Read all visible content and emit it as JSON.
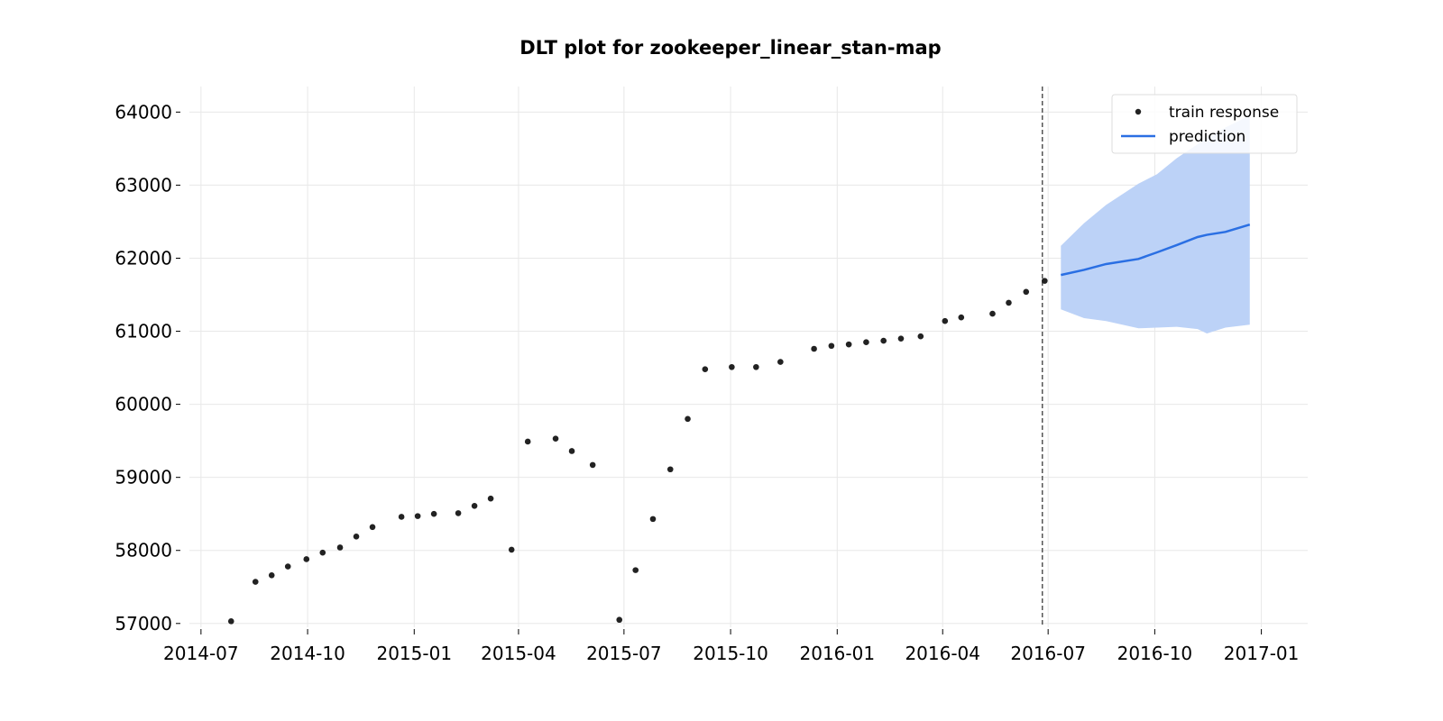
{
  "chart_data": {
    "type": "line",
    "title": "DLT plot for zookeeper_linear_stan-map",
    "xlabel": "",
    "ylabel": "",
    "xlim": [
      "2014-06-21",
      "2017-02-10"
    ],
    "ylim": [
      56800,
      64350
    ],
    "x_ticks": [
      "2014-07",
      "2014-10",
      "2015-01",
      "2015-04",
      "2015-07",
      "2015-10",
      "2016-01",
      "2016-04",
      "2016-07",
      "2016-10",
      "2017-01"
    ],
    "y_ticks": [
      57000,
      58000,
      59000,
      60000,
      61000,
      62000,
      63000,
      64000
    ],
    "grid": true,
    "legend_position": "top-right",
    "legend": [
      "train response",
      "prediction"
    ],
    "train_end": "2016-06-26",
    "series": [
      {
        "name": "train response",
        "kind": "scatter",
        "color": "#222222",
        "points": [
          [
            "2014-07-27",
            57030
          ],
          [
            "2014-08-17",
            57570
          ],
          [
            "2014-08-31",
            57660
          ],
          [
            "2014-09-14",
            57780
          ],
          [
            "2014-09-30",
            57880
          ],
          [
            "2014-10-14",
            57970
          ],
          [
            "2014-10-29",
            58040
          ],
          [
            "2014-11-12",
            58190
          ],
          [
            "2014-11-26",
            58320
          ],
          [
            "2014-12-21",
            58460
          ],
          [
            "2015-01-04",
            58470
          ],
          [
            "2015-01-18",
            58500
          ],
          [
            "2015-02-08",
            58510
          ],
          [
            "2015-02-22",
            58610
          ],
          [
            "2015-03-08",
            58710
          ],
          [
            "2015-03-26",
            58010
          ],
          [
            "2015-04-09",
            59490
          ],
          [
            "2015-05-03",
            59530
          ],
          [
            "2015-05-17",
            59360
          ],
          [
            "2015-06-04",
            59170
          ],
          [
            "2015-06-27",
            57050
          ],
          [
            "2015-07-11",
            57730
          ],
          [
            "2015-07-26",
            58430
          ],
          [
            "2015-08-10",
            59110
          ],
          [
            "2015-08-25",
            59800
          ],
          [
            "2015-09-09",
            60480
          ],
          [
            "2015-10-02",
            60510
          ],
          [
            "2015-10-23",
            60510
          ],
          [
            "2015-11-13",
            60580
          ],
          [
            "2015-12-12",
            60760
          ],
          [
            "2015-12-27",
            60800
          ],
          [
            "2016-01-11",
            60820
          ],
          [
            "2016-01-26",
            60850
          ],
          [
            "2016-02-10",
            60870
          ],
          [
            "2016-02-25",
            60900
          ],
          [
            "2016-03-13",
            60930
          ],
          [
            "2016-04-03",
            61140
          ],
          [
            "2016-04-17",
            61190
          ],
          [
            "2016-05-14",
            61240
          ],
          [
            "2016-05-28",
            61390
          ],
          [
            "2016-06-12",
            61540
          ],
          [
            "2016-06-28",
            61690
          ]
        ]
      },
      {
        "name": "prediction",
        "kind": "line",
        "color": "#2a6fe3",
        "band_color": "#bcd2f7",
        "points": [
          [
            "2016-07-12",
            61770,
            61300,
            62170
          ],
          [
            "2016-08-01",
            61840,
            61180,
            62480
          ],
          [
            "2016-08-20",
            61920,
            61140,
            62730
          ],
          [
            "2016-09-17",
            61990,
            61040,
            63020
          ],
          [
            "2016-10-03",
            62080,
            61050,
            63150
          ],
          [
            "2016-10-20",
            62180,
            61060,
            63370
          ],
          [
            "2016-11-07",
            62290,
            61030,
            63560
          ],
          [
            "2016-11-15",
            62320,
            60970,
            63640
          ],
          [
            "2016-12-01",
            62360,
            61050,
            63790
          ],
          [
            "2016-12-22",
            62460,
            61090,
            63950
          ]
        ]
      }
    ]
  }
}
